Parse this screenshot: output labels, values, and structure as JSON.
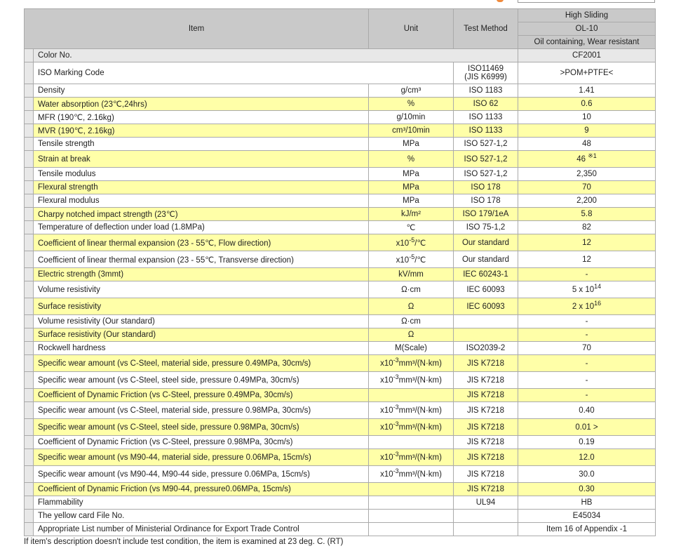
{
  "header": {
    "item": "Item",
    "unit": "Unit",
    "test_method": "Test Method",
    "grade_series": "High Sliding",
    "grade": "OL-10",
    "grade_desc": "Oil containing, Wear resistant"
  },
  "color_row": {
    "label": "Color No.",
    "value": "CF2001"
  },
  "iso_row": {
    "label": "ISO Marking Code",
    "test1": "ISO11469",
    "test2": "(JIS K6999)",
    "value": ">POM+PTFE<"
  },
  "rows": [
    {
      "item": "Density",
      "unit": "g/cm³",
      "test": "ISO 1183",
      "value": "1.41",
      "y": false,
      "h": 19
    },
    {
      "item": "Water absorption (23℃,24hrs)",
      "unit": "%",
      "test": "ISO 62",
      "value": "0.6",
      "y": true,
      "h": 19
    },
    {
      "item": "MFR (190℃, 2.16kg)",
      "unit": "g/10min",
      "test": "ISO 1133",
      "value": "10",
      "y": false,
      "h": 19
    },
    {
      "item": "MVR (190℃, 2.16kg)",
      "unit": "cm³/10min",
      "test": "ISO 1133",
      "value": "9",
      "y": true,
      "h": 19
    },
    {
      "item": "Tensile strength",
      "unit": "MPa",
      "test": "ISO 527-1,2",
      "value": "48",
      "y": false,
      "h": 19
    },
    {
      "item": "Strain at break",
      "unit": "%",
      "test": "ISO 527-1,2",
      "value": "46 ",
      "value_sup": "※1",
      "y": true,
      "h": 24
    },
    {
      "item": "Tensile modulus",
      "unit": "MPa",
      "test": "ISO 527-1,2",
      "value": "2,350",
      "y": false,
      "h": 19
    },
    {
      "item": "Flexural strength",
      "unit": "MPa",
      "test": "ISO 178",
      "value": "70",
      "y": true,
      "h": 19
    },
    {
      "item": "Flexural modulus",
      "unit": "MPa",
      "test": "ISO 178",
      "value": "2,200",
      "y": false,
      "h": 19
    },
    {
      "item": "Charpy notched impact strength (23℃)",
      "unit": "kJ/m²",
      "test": "ISO 179/1eA",
      "value": "5.8",
      "y": true,
      "h": 19
    },
    {
      "item": "Temperature of deflection under load (1.8MPa)",
      "unit": "℃",
      "test": "ISO 75-1,2",
      "value": "82",
      "y": false,
      "h": 19
    },
    {
      "item": "Coefficient of linear thermal expansion (23 - 55℃, Flow direction)",
      "unit": "x10",
      "unit_sup": "-5",
      "unit_post": "/℃",
      "test": "Our standard",
      "value": "12",
      "y": true,
      "h": 24
    },
    {
      "item": "Coefficient of linear thermal expansion (23 - 55℃, Transverse direction)",
      "unit": "x10",
      "unit_sup": "-5",
      "unit_post": "/℃",
      "test": "Our standard",
      "value": "12",
      "y": false,
      "h": 24
    },
    {
      "item": "Electric strength (3mmt)",
      "unit": "kV/mm",
      "test": "IEC 60243-1",
      "value": "-",
      "y": true,
      "h": 19
    },
    {
      "item": "Volume resistivity",
      "unit": "Ω·cm",
      "test": "IEC 60093",
      "value": "5 x 10",
      "value_sup": "14",
      "y": false,
      "h": 24
    },
    {
      "item": "Surface resistivity",
      "unit": "Ω",
      "test": "IEC 60093",
      "value": "2 x 10",
      "value_sup": "16",
      "y": true,
      "h": 24
    },
    {
      "item": "Volume resistivity (Our standard)",
      "unit": "Ω·cm",
      "test": "",
      "value": "-",
      "y": false,
      "h": 19
    },
    {
      "item": "Surface resistivity (Our standard)",
      "unit": "Ω",
      "test": "",
      "value": "-",
      "y": true,
      "h": 19
    },
    {
      "item": "Rockwell hardness",
      "unit": "M(Scale)",
      "test": "ISO2039-2",
      "value": "70",
      "y": false,
      "h": 19
    },
    {
      "item": "Specific wear amount (vs C-Steel, material side, pressure 0.49MPa, 30cm/s)",
      "unit": "x10",
      "unit_sup": "-3",
      "unit_post": "mm³/(N·km)",
      "test": "JIS K7218",
      "value": "-",
      "y": true,
      "h": 24
    },
    {
      "item": "Specific wear amount (vs C-Steel, steel side, pressure 0.49MPa, 30cm/s)",
      "unit": "x10",
      "unit_sup": "-3",
      "unit_post": "mm³/(N·km)",
      "test": "JIS K7218",
      "value": "-",
      "y": false,
      "h": 24
    },
    {
      "item": "Coefficient of Dynamic Friction (vs C-Steel, pressure 0.49MPa, 30cm/s)",
      "unit": "",
      "test": "JIS K7218",
      "value": "-",
      "y": true,
      "h": 19
    },
    {
      "item": "Specific wear amount (vs C-Steel, material side, pressure 0.98MPa, 30cm/s)",
      "unit": "x10",
      "unit_sup": "-3",
      "unit_post": "mm³/(N·km)",
      "test": "JIS K7218",
      "value": "0.40",
      "y": false,
      "h": 24
    },
    {
      "item": "Specific wear amount (vs C-Steel, steel side, pressure 0.98MPa, 30cm/s)",
      "unit": "x10",
      "unit_sup": "-3",
      "unit_post": "mm³/(N·km)",
      "test": "JIS K7218",
      "value": "0.01 >",
      "y": true,
      "h": 24
    },
    {
      "item": "Coefficient of Dynamic Friction (vs C-Steel, pressure 0.98MPa, 30cm/s)",
      "unit": "",
      "test": "JIS K7218",
      "value": "0.19",
      "y": false,
      "h": 19
    },
    {
      "item": "Specific wear amount (vs M90-44, material side, pressure 0.06MPa, 15cm/s)",
      "unit": "x10",
      "unit_sup": "-3",
      "unit_post": "mm³/(N·km)",
      "test": "JIS K7218",
      "value": "12.0",
      "y": true,
      "h": 24
    },
    {
      "item": "Specific wear amount (vs M90-44, M90-44 side, pressure 0.06MPa, 15cm/s)",
      "unit": "x10",
      "unit_sup": "-3",
      "unit_post": "mm³/(N·km)",
      "test": "JIS K7218",
      "value": "30.0",
      "y": false,
      "h": 24
    },
    {
      "item": "Coefficient of Dynamic Friction (vs M90-44, pressure0.06MPa, 15cm/s)",
      "unit": "",
      "test": "JIS K7218",
      "value": "0.30",
      "y": true,
      "h": 19
    },
    {
      "item": "Flammability",
      "unit": "",
      "test": "UL94",
      "value": "HB",
      "y": false,
      "h": 19
    },
    {
      "item": "The yellow card File No.",
      "unit": "",
      "test": "",
      "value": "E45034",
      "y": false,
      "h": 19
    },
    {
      "item": "Appropriate List number of Ministerial Ordinance for Export Trade Control",
      "unit": "",
      "test": "",
      "value": "Item 16 of Appendix -1",
      "y": false,
      "h": 19
    }
  ],
  "footnote": "If item's description doesn't include test condition, the item is examined at 23 deg. C. (RT)"
}
